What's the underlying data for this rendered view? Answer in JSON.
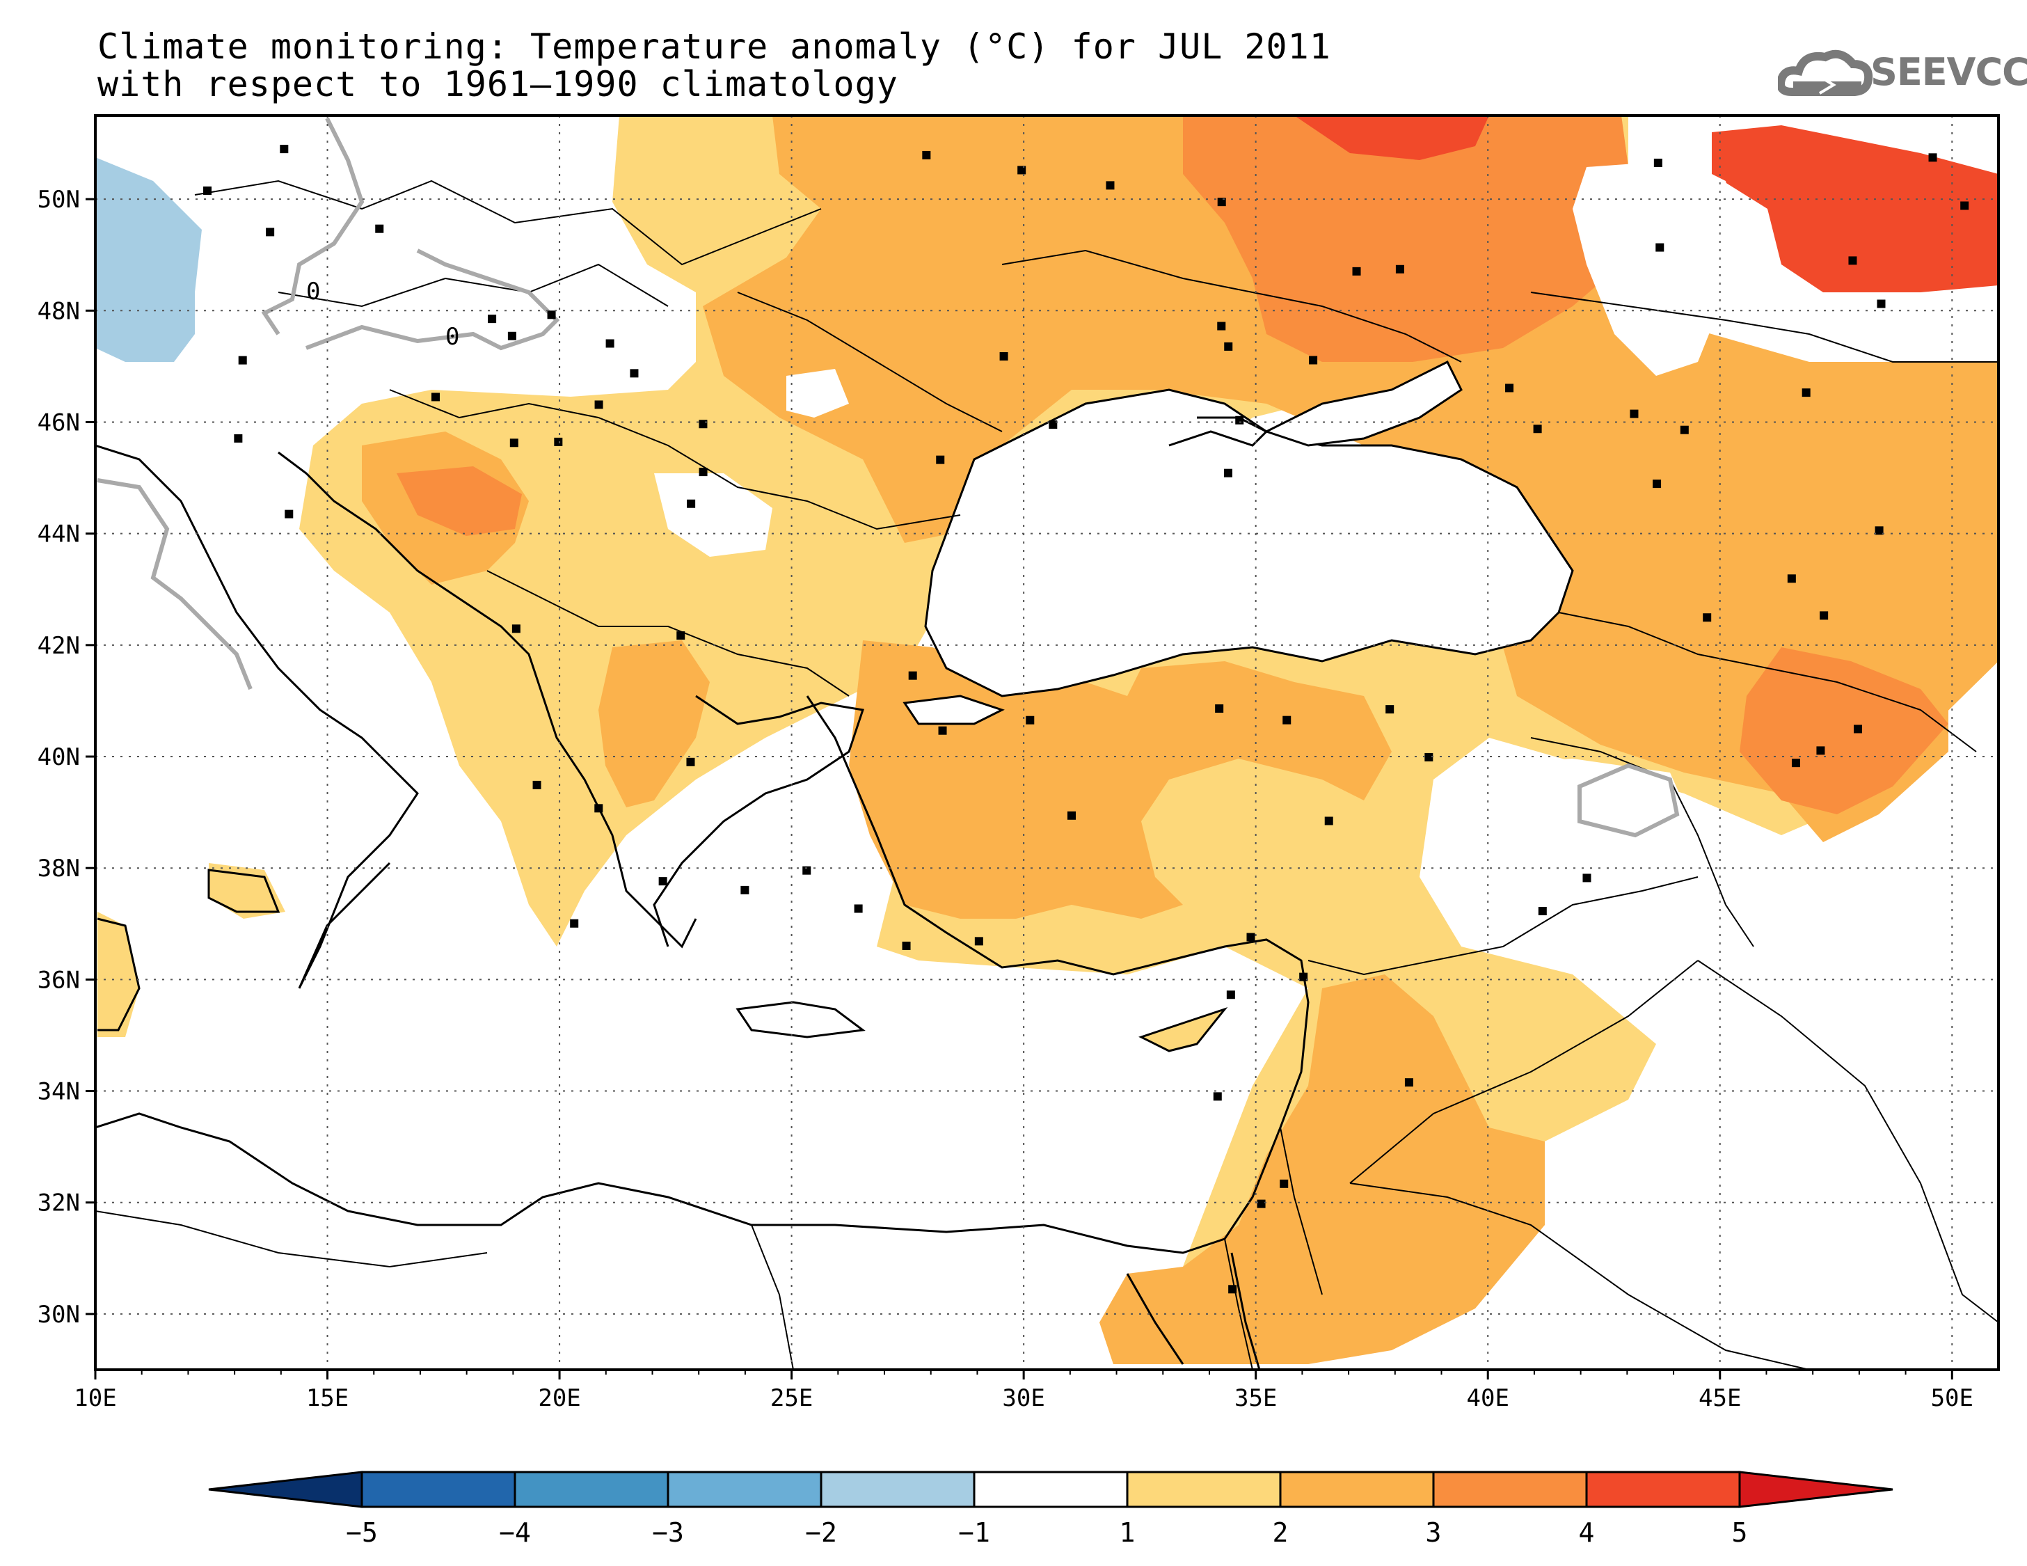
{
  "header": {
    "title_line1": "Climate monitoring: Temperature anomaly (°C) for JUL 2011",
    "title_line2": "with respect to 1961–1990 climatology",
    "logo_text": "SEEVCCC"
  },
  "map": {
    "lon_range": [
      10,
      51
    ],
    "lat_range": [
      29,
      51.5
    ],
    "x_ticks": [
      "10E",
      "15E",
      "20E",
      "25E",
      "30E",
      "35E",
      "40E",
      "45E",
      "50E"
    ],
    "y_ticks": [
      "30N",
      "32N",
      "34N",
      "36N",
      "38N",
      "40N",
      "42N",
      "44N",
      "46N",
      "48N",
      "50N"
    ],
    "contour_labels": [
      "0",
      "0"
    ],
    "palette": {
      "neg5": "#08306b",
      "neg4": "#2166ac",
      "neg3": "#4393c3",
      "neg2": "#6aaed6",
      "neg1": "#a6cde3",
      "zero": "#ffffff",
      "pos1": "#fdd87a",
      "pos2": "#fbb24c",
      "pos3": "#f98e3e",
      "pos4": "#f14a2a",
      "pos5": "#d7191c"
    }
  },
  "colorbar": {
    "labels": [
      "-5",
      "-4",
      "-3",
      "-2",
      "-1",
      "1",
      "2",
      "3",
      "4",
      "5"
    ],
    "colors": [
      "#08306b",
      "#2166ac",
      "#4393c3",
      "#6aaed6",
      "#a6cde3",
      "#ffffff",
      "#fdd87a",
      "#fbb24c",
      "#f98e3e",
      "#f14a2a",
      "#d7191c"
    ]
  }
}
